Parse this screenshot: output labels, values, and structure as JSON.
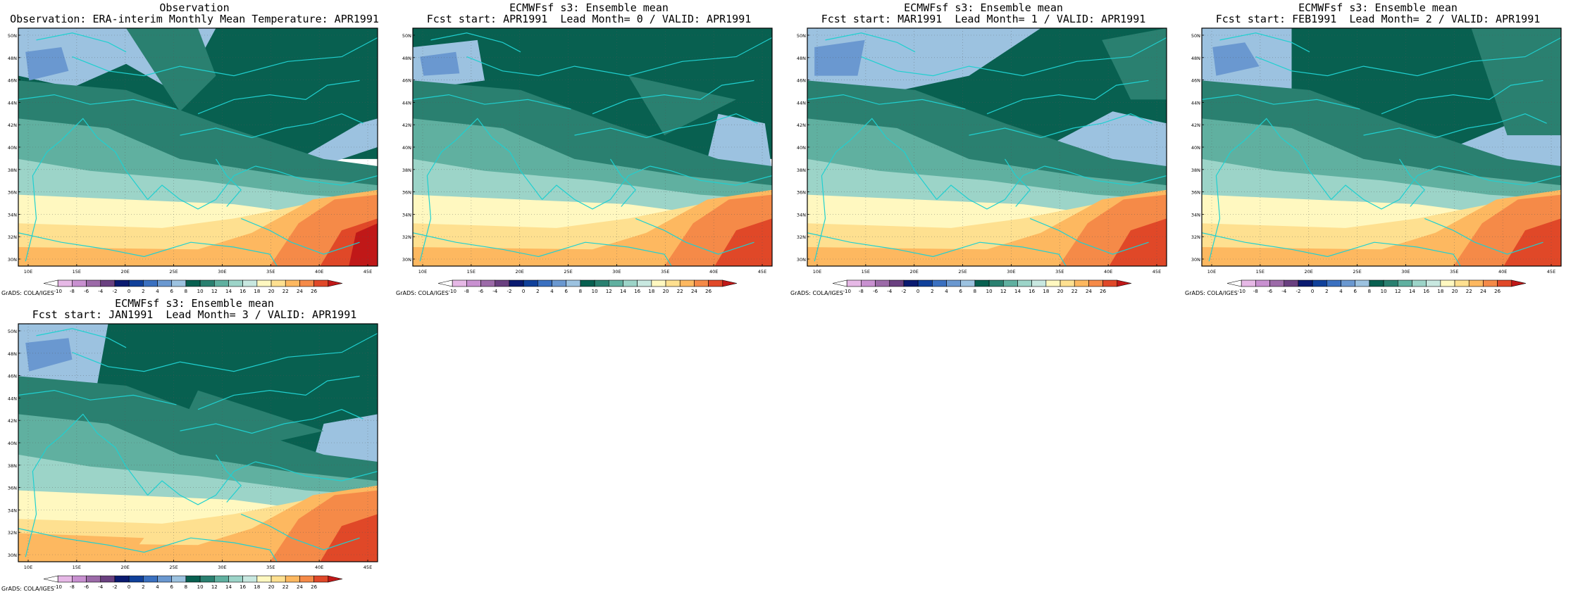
{
  "panels": [
    {
      "title1": "Observation",
      "title2": "Observation: ERA-interim Monthly Mean Temperature: APR1991",
      "variant": 0
    },
    {
      "title1": "ECMWFsf s3: Ensemble mean",
      "title2": "Fcst start: APR1991  Lead Month= 0 / VALID: APR1991",
      "variant": 1
    },
    {
      "title1": "ECMWFsf s3: Ensemble mean",
      "title2": "Fcst start: MAR1991  Lead Month= 1 / VALID: APR1991",
      "variant": 2
    },
    {
      "title1": "ECMWFsf s3: Ensemble mean",
      "title2": "Fcst start: FEB1991  Lead Month= 2 / VALID: APR1991",
      "variant": 3
    },
    {
      "title1": "ECMWFsf s3: Ensemble mean",
      "title2": "Fcst start: JAN1991  Lead Month= 3 / VALID: APR1991",
      "variant": 4
    }
  ],
  "map": {
    "lat_labels": [
      "50N",
      "48N",
      "46N",
      "44N",
      "42N",
      "40N",
      "38N",
      "36N",
      "34N",
      "32N",
      "30N"
    ],
    "lon_labels": [
      "10E",
      "15E",
      "20E",
      "25E",
      "30E",
      "35E",
      "40E",
      "45E"
    ],
    "lat_range": [
      30,
      51
    ],
    "lon_range": [
      8,
      45
    ]
  },
  "colorbar": {
    "labels": [
      "-10",
      "-8",
      "-6",
      "-4",
      "-2",
      "0",
      "2",
      "4",
      "6",
      "8",
      "10",
      "12",
      "14",
      "16",
      "18",
      "20",
      "22",
      "24",
      "26"
    ],
    "colors": [
      "#ffffff",
      "#e6b8e6",
      "#c890d0",
      "#9c6aa8",
      "#6a4080",
      "#0a1a70",
      "#10409a",
      "#3a70c0",
      "#6a98d0",
      "#9cc2e0",
      "#086050",
      "#2a8070",
      "#60b0a0",
      "#9cd4c8",
      "#c8e8e0",
      "#fff8c0",
      "#fee090",
      "#fdb860",
      "#f58a48",
      "#e04828",
      "#c01818"
    ]
  },
  "credit": "GrADS: COLA/IGES",
  "colors": {
    "coast": "#20d0d0",
    "grid": "#000000"
  }
}
